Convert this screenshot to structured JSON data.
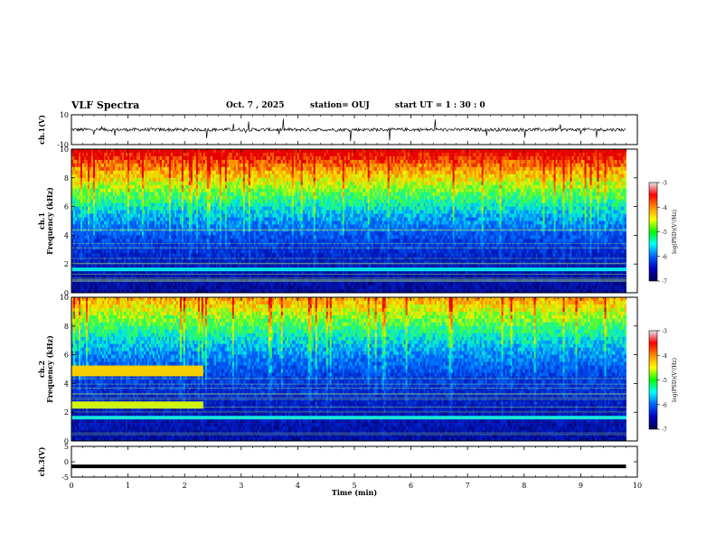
{
  "header": {
    "title": "VLF Spectra",
    "date": "Oct. 7 , 2025",
    "station": "station= OUJ",
    "start": "start  UT =   1 : 30 : 0"
  },
  "colorbar": {
    "label": "log(PSD)(V²/Hz)",
    "ticks": [
      "-3",
      "-4",
      "-5",
      "-6",
      "-7"
    ],
    "colors": [
      "#e8e8e8",
      "#ff0000",
      "#ff8c00",
      "#ffff00",
      "#00ff00",
      "#00ffff",
      "#0060ff",
      "#0000c0",
      "#000050"
    ]
  },
  "chart_data": [
    {
      "type": "line",
      "panel": "ch1-waveform",
      "ylabel": "ch.1(V)",
      "ylim": [
        -10,
        10
      ],
      "yticks": [
        "10",
        "-10"
      ],
      "xlim": [
        0,
        9.8
      ],
      "baseline": 0
    },
    {
      "type": "heatmap",
      "panel": "ch1-spectrogram",
      "ylabel": "ch.1\nFrequency (kHz)",
      "ylim": [
        0,
        10
      ],
      "yticks": [
        "0",
        "2",
        "4",
        "6",
        "8",
        "10"
      ],
      "xlim": [
        0,
        9.8
      ],
      "zlim": [
        -7,
        -3
      ]
    },
    {
      "type": "heatmap",
      "panel": "ch2-spectrogram",
      "ylabel": "ch.2\nFrequency (kHz)",
      "ylim": [
        0,
        10
      ],
      "yticks": [
        "0",
        "2",
        "4",
        "6",
        "8",
        "10"
      ],
      "xlim": [
        0,
        9.8
      ],
      "zlim": [
        -7,
        -3
      ]
    },
    {
      "type": "line",
      "panel": "ch3-waveform",
      "ylabel": "ch.3(V)",
      "ylim": [
        -5,
        5
      ],
      "yticks": [
        "5",
        "0",
        "-5"
      ],
      "xlim": [
        0,
        9.8
      ],
      "baseline": -1.5
    }
  ],
  "xaxis": {
    "label": "Time (min)",
    "ticks": [
      "0",
      "1",
      "2",
      "3",
      "4",
      "5",
      "6",
      "7",
      "8",
      "9",
      "10"
    ],
    "range": [
      0,
      10
    ]
  }
}
